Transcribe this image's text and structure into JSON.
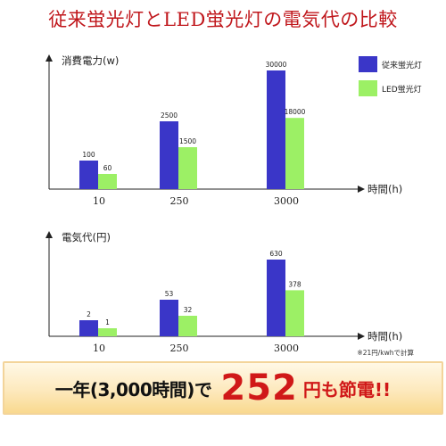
{
  "title": "従来蛍光灯とLED蛍光灯の電気代の比較",
  "legend": {
    "series1": {
      "name": "従来蛍光灯",
      "color": "#3a36c8"
    },
    "series2": {
      "name": "LED蛍光灯",
      "color": "#9cf065"
    }
  },
  "chart_data": [
    {
      "type": "bar",
      "ylabel": "消費電力(w)",
      "xlabel": "時間(h)",
      "categories": [
        "10",
        "250",
        "3000"
      ],
      "series": [
        {
          "name": "従来蛍光灯",
          "values": [
            100,
            2500,
            30000
          ]
        },
        {
          "name": "LED蛍光灯",
          "values": [
            60,
            1500,
            18000
          ]
        }
      ],
      "data_labels": [
        [
          "100",
          "2500",
          "30000"
        ],
        [
          "60",
          "1500",
          "18000"
        ]
      ],
      "legend": "top-right"
    },
    {
      "type": "bar",
      "ylabel": "電気代(円)",
      "xlabel": "時間(h)",
      "categories": [
        "10",
        "250",
        "3000"
      ],
      "series": [
        {
          "name": "従来蛍光灯",
          "values": [
            2,
            53,
            630
          ]
        },
        {
          "name": "LED蛍光灯",
          "values": [
            1,
            32,
            378
          ]
        }
      ],
      "data_labels": [
        [
          "2",
          "53",
          "630"
        ],
        [
          "1",
          "32",
          "378"
        ]
      ]
    }
  ],
  "footnote": "※21円/kwhで計算",
  "banner": {
    "lead": "一年(3,000時間)で",
    "amount": "252",
    "tail": "円も節電!!"
  }
}
